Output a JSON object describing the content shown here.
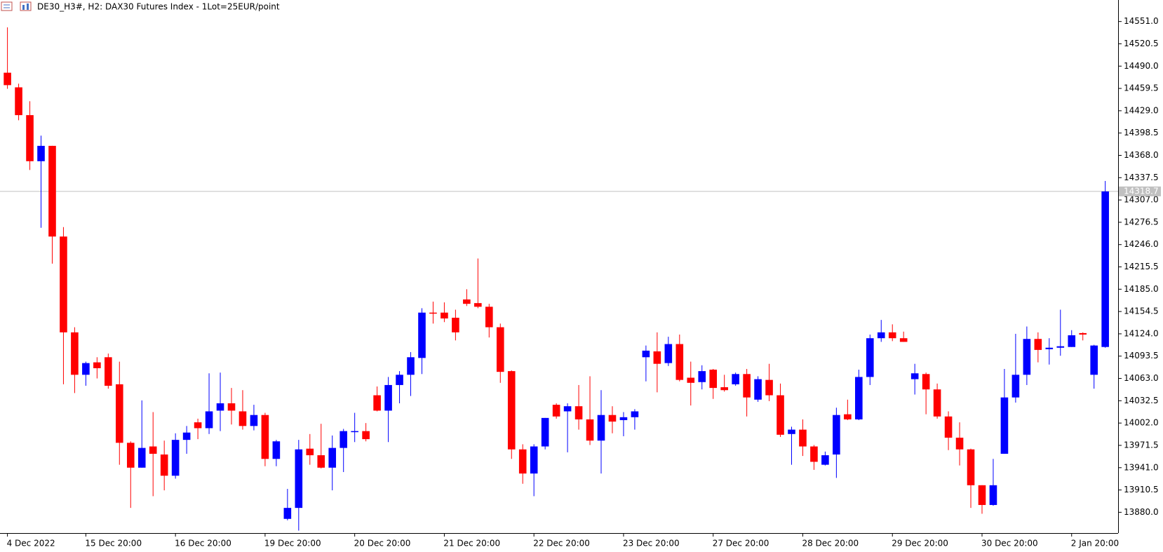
{
  "chart_data": {
    "type": "candlestick",
    "title": "DE30_H3#, H2:  DAX30 Futures Index  - 1Lot=25EUR/point",
    "categories": [
      "4 Dec 2022",
      null,
      null,
      null,
      null,
      null,
      null,
      "15 Dec 20:00",
      null,
      null,
      null,
      null,
      null,
      null,
      null,
      "16 Dec 20:00",
      null,
      null,
      null,
      null,
      null,
      null,
      null,
      "19 Dec 20:00",
      null,
      null,
      null,
      null,
      null,
      null,
      null,
      "20 Dec 20:00",
      null,
      null,
      null,
      null,
      null,
      null,
      null,
      "21 Dec 20:00",
      null,
      null,
      null,
      null,
      null,
      null,
      null,
      "22 Dec 20:00",
      null,
      null,
      null,
      null,
      null,
      null,
      null,
      "23 Dec 20:00",
      null,
      null,
      null,
      null,
      null,
      null,
      null,
      "27 Dec 20:00",
      null,
      null,
      null,
      null,
      null,
      null,
      null,
      "28 Dec 20:00",
      null,
      null,
      null,
      null,
      null,
      null,
      null,
      "29 Dec 20:00",
      null,
      null,
      null,
      null,
      null,
      null,
      null,
      "30 Dec 20:00",
      null,
      null,
      null,
      null,
      null,
      null,
      null,
      "2 Jan 20:00",
      null,
      null,
      null
    ],
    "open": [
      14481,
      14461,
      14423,
      14360,
      14381,
      14257,
      14126,
      14068,
      14085,
      14092,
      14055,
      13975,
      13941,
      13970,
      13959,
      13930,
      13979,
      14003,
      13995,
      14019,
      14029,
      14018,
      13998,
      14013,
      13953,
      13871,
      13886,
      13967,
      13958,
      13941,
      13968,
      13990,
      13991,
      14040,
      14019,
      14054,
      14068,
      14091,
      14153,
      14153,
      14146,
      14171,
      14166,
      14161,
      14133,
      14073,
      13966,
      13933,
      13970,
      14027,
      14018,
      14025,
      14007,
      13978,
      14013,
      14006,
      14010,
      14092,
      14100,
      14084,
      14110,
      14064,
      14058,
      14075,
      14051,
      14055,
      14069,
      14034,
      14061,
      14040,
      13987,
      13993,
      13970,
      13945,
      13959,
      14014,
      14007,
      14065,
      14118,
      14126,
      14118,
      14062,
      14069,
      14048,
      14011,
      13982,
      13966,
      13917,
      13890,
      13960,
      14037,
      14068,
      14117,
      14103,
      14105,
      14106,
      14125,
      14068,
      14106
    ],
    "high": [
      14543,
      14466,
      14442,
      14395,
      14381,
      14270,
      14133,
      14086,
      14092,
      14097,
      14086,
      13977,
      14033,
      14017,
      13978,
      13988,
      13998,
      14008,
      14070,
      14071,
      14050,
      14047,
      14027,
      14016,
      13979,
      13912,
      13979,
      13987,
      14001,
      13985,
      13994,
      14016,
      14002,
      14052,
      14065,
      14073,
      14099,
      14159,
      14168,
      14167,
      14157,
      14185,
      14227,
      14165,
      14138,
      14074,
      13973,
      13973,
      14009,
      14029,
      14029,
      14054,
      14066,
      14047,
      14025,
      14017,
      14021,
      14108,
      14126,
      14120,
      14123,
      14086,
      14081,
      14076,
      14068,
      14071,
      14076,
      14066,
      14083,
      14056,
      13997,
      14007,
      13972,
      13963,
      14023,
      14034,
      14075,
      14123,
      14143,
      14137,
      14127,
      14083,
      14071,
      14056,
      14018,
      14003,
      13967,
      13917,
      13953,
      14076,
      14124,
      14134,
      14126,
      14118,
      14157,
      14129,
      14126,
      14109,
      14333
    ],
    "low": [
      14459,
      14416,
      14348,
      14269,
      14220,
      14055,
      14043,
      14053,
      14063,
      14049,
      13945,
      13886,
      13941,
      13902,
      13910,
      13926,
      13960,
      13980,
      13987,
      13991,
      14000,
      13993,
      13992,
      13943,
      13943,
      13869,
      13855,
      13945,
      13940,
      13910,
      13935,
      13976,
      13977,
      14018,
      13976,
      14029,
      14039,
      14069,
      14138,
      14140,
      14115,
      14162,
      14159,
      14119,
      14057,
      13953,
      13919,
      13902,
      13966,
      14008,
      13962,
      13993,
      13972,
      13933,
      13988,
      13984,
      13993,
      14059,
      14044,
      14080,
      14059,
      14026,
      14048,
      14035,
      14045,
      14053,
      14011,
      14031,
      14032,
      13983,
      13945,
      13957,
      13938,
      13944,
      13927,
      14006,
      14006,
      14054,
      14113,
      14114,
      14113,
      14041,
      14014,
      14008,
      13965,
      13944,
      13886,
      13878,
      13889,
      13960,
      14030,
      14054,
      14085,
      14082,
      14094,
      14106,
      14115,
      14049,
      14105
    ],
    "close": [
      14464,
      14423,
      14360,
      14381,
      14257,
      14126,
      14068,
      14084,
      14077,
      14053,
      13975,
      13941,
      13968,
      13960,
      13930,
      13979,
      13989,
      13995,
      14018,
      14029,
      14019,
      13998,
      14013,
      13953,
      13977,
      13886,
      13966,
      13958,
      13941,
      13968,
      13991,
      13991,
      13980,
      14019,
      14054,
      14068,
      14092,
      14153,
      14152,
      14145,
      14126,
      14165,
      14161,
      14133,
      14072,
      13966,
      13933,
      13970,
      14009,
      14011,
      14025,
      14007,
      13978,
      14013,
      14004,
      14010,
      14018,
      14101,
      14083,
      14110,
      14061,
      14057,
      14073,
      14050,
      14047,
      14069,
      14037,
      14062,
      14040,
      13986,
      13993,
      13970,
      13949,
      13958,
      14013,
      14007,
      14065,
      14118,
      14126,
      14118,
      14113,
      14070,
      14048,
      14011,
      13982,
      13966,
      13917,
      13890,
      13917,
      14037,
      14068,
      14117,
      14102,
      14105,
      14107,
      14122,
      14123,
      14108,
      14318.7
    ],
    "up_color": "#0000ff",
    "down_color": "#ff0000",
    "current_price": 14318.7,
    "ylim": [
      13851.6,
      14580.4
    ],
    "yticks": [
      {
        "value": 14551,
        "label": "14551.0"
      },
      14520.5,
      {
        "value": 14490,
        "label": "14490.0"
      },
      14459.5,
      {
        "value": 14429,
        "label": "14429.0"
      },
      14398.5,
      {
        "value": 14368,
        "label": "14368.0"
      },
      14337.5,
      {
        "value": 14307,
        "label": "14307.0"
      },
      14276.5,
      {
        "value": 14246,
        "label": "14246.0"
      },
      14215.5,
      {
        "value": 14185,
        "label": "14185.0"
      },
      14154.5,
      {
        "value": 14124,
        "label": "14124.0"
      },
      14093.5,
      {
        "value": 14063,
        "label": "14063.0"
      },
      14032.5,
      {
        "value": 14002,
        "label": "14002.0"
      },
      13971.5,
      {
        "value": 13941,
        "label": "13941.0"
      },
      13910.5,
      {
        "value": 13880,
        "label": "13880.0"
      }
    ]
  }
}
